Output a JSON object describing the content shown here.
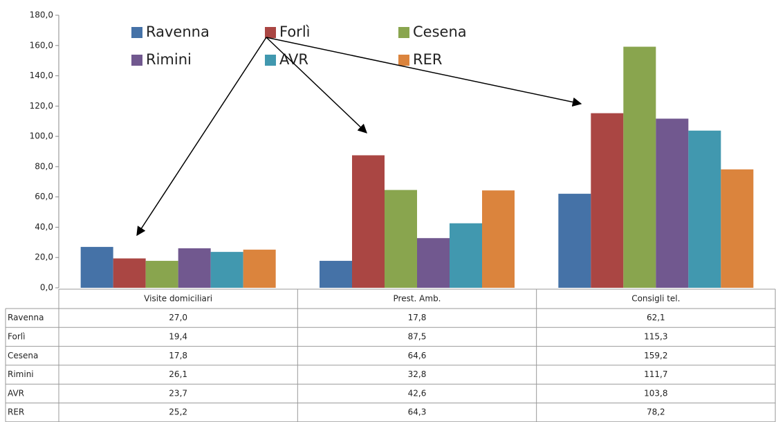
{
  "chart_data": {
    "type": "bar",
    "categories": [
      "Visite domiciliari",
      "Prest. Amb.",
      "Consigli tel."
    ],
    "series": [
      {
        "name": "Ravenna",
        "color": "#4572a7",
        "values": [
          27.0,
          17.8,
          62.1
        ],
        "value_labels": [
          "27,0",
          "17,8",
          "62,1"
        ]
      },
      {
        "name": "Forlì",
        "color": "#aa4643",
        "values": [
          19.4,
          87.5,
          115.3
        ],
        "value_labels": [
          "19,4",
          "87,5",
          "115,3"
        ]
      },
      {
        "name": "Cesena",
        "color": "#89a54e",
        "values": [
          17.8,
          64.6,
          159.2
        ],
        "value_labels": [
          "17,8",
          "64,6",
          "159,2"
        ]
      },
      {
        "name": "Rimini",
        "color": "#71588f",
        "values": [
          26.1,
          32.8,
          111.7
        ],
        "value_labels": [
          "26,1",
          "32,8",
          "111,7"
        ]
      },
      {
        "name": "AVR",
        "color": "#4198af",
        "values": [
          23.7,
          42.6,
          103.8
        ],
        "value_labels": [
          "23,7",
          "42,6",
          "103,8"
        ]
      },
      {
        "name": "RER",
        "color": "#db843d",
        "values": [
          25.2,
          64.3,
          78.2
        ],
        "value_labels": [
          "25,2",
          "64,3",
          "78,2"
        ]
      }
    ],
    "ylim": [
      0,
      180
    ],
    "yticks": [
      {
        "value": 0,
        "label": "0,0"
      },
      {
        "value": 20,
        "label": "20,0"
      },
      {
        "value": 40,
        "label": "40,0"
      },
      {
        "value": 60,
        "label": "60,0"
      },
      {
        "value": 80,
        "label": "80,0"
      },
      {
        "value": 100,
        "label": "100,0"
      },
      {
        "value": 120,
        "label": "120,0"
      },
      {
        "value": 140,
        "label": "140,0"
      },
      {
        "value": 160,
        "label": "160,0"
      },
      {
        "value": 180,
        "label": "180,0"
      }
    ],
    "grid": false,
    "legend": "top"
  }
}
